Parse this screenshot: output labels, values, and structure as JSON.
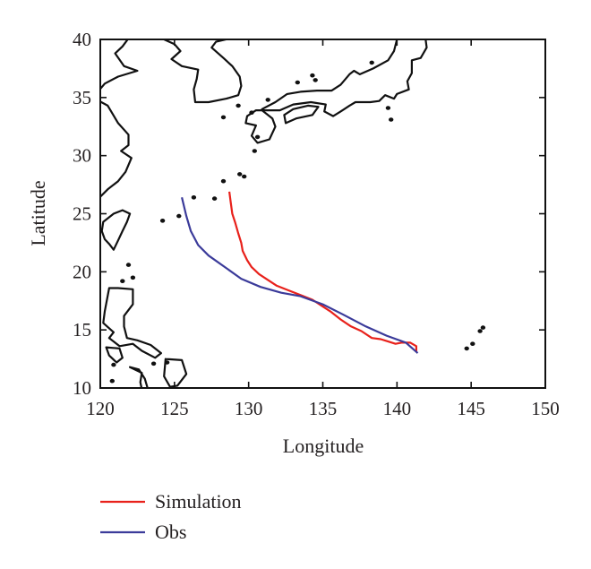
{
  "chart_data": {
    "type": "line",
    "xlabel": "Longitude",
    "ylabel": "Latitude",
    "xlim": [
      120,
      150
    ],
    "ylim": [
      10,
      40
    ],
    "x_ticks": [
      "120",
      "125",
      "130",
      "135",
      "140",
      "145",
      "150"
    ],
    "y_ticks": [
      "10",
      "15",
      "20",
      "25",
      "30",
      "35",
      "40"
    ],
    "grid": false,
    "legend_position": "bottom-left, below plot",
    "basemap": "coastlines (East Asia / Western North Pacific)",
    "series": [
      {
        "name": "Simulation",
        "color": "#e8211b",
        "points": [
          [
            141.3,
            13.1
          ],
          [
            141.3,
            13.6
          ],
          [
            140.9,
            13.9
          ],
          [
            140.3,
            13.9
          ],
          [
            139.9,
            13.8
          ],
          [
            139.4,
            14.0
          ],
          [
            138.9,
            14.2
          ],
          [
            138.3,
            14.3
          ],
          [
            137.6,
            14.9
          ],
          [
            136.9,
            15.3
          ],
          [
            136.2,
            15.9
          ],
          [
            135.5,
            16.6
          ],
          [
            134.9,
            17.1
          ],
          [
            134.3,
            17.6
          ],
          [
            133.5,
            18.0
          ],
          [
            132.7,
            18.4
          ],
          [
            131.9,
            18.8
          ],
          [
            131.3,
            19.3
          ],
          [
            130.7,
            19.8
          ],
          [
            130.2,
            20.4
          ],
          [
            129.9,
            21.0
          ],
          [
            129.6,
            21.8
          ],
          [
            129.5,
            22.5
          ],
          [
            129.3,
            23.3
          ],
          [
            129.1,
            24.2
          ],
          [
            128.9,
            25.0
          ],
          [
            128.8,
            25.9
          ],
          [
            128.7,
            26.9
          ]
        ]
      },
      {
        "name": "Obs",
        "color": "#3b3b9a",
        "points": [
          [
            141.4,
            13.0
          ],
          [
            140.6,
            13.9
          ],
          [
            139.3,
            14.5
          ],
          [
            137.9,
            15.3
          ],
          [
            136.4,
            16.3
          ],
          [
            135.0,
            17.2
          ],
          [
            133.5,
            17.9
          ],
          [
            132.2,
            18.2
          ],
          [
            130.8,
            18.7
          ],
          [
            129.5,
            19.4
          ],
          [
            128.4,
            20.4
          ],
          [
            127.3,
            21.4
          ],
          [
            126.6,
            22.3
          ],
          [
            126.1,
            23.5
          ],
          [
            125.8,
            24.8
          ],
          [
            125.5,
            26.4
          ]
        ]
      }
    ]
  }
}
